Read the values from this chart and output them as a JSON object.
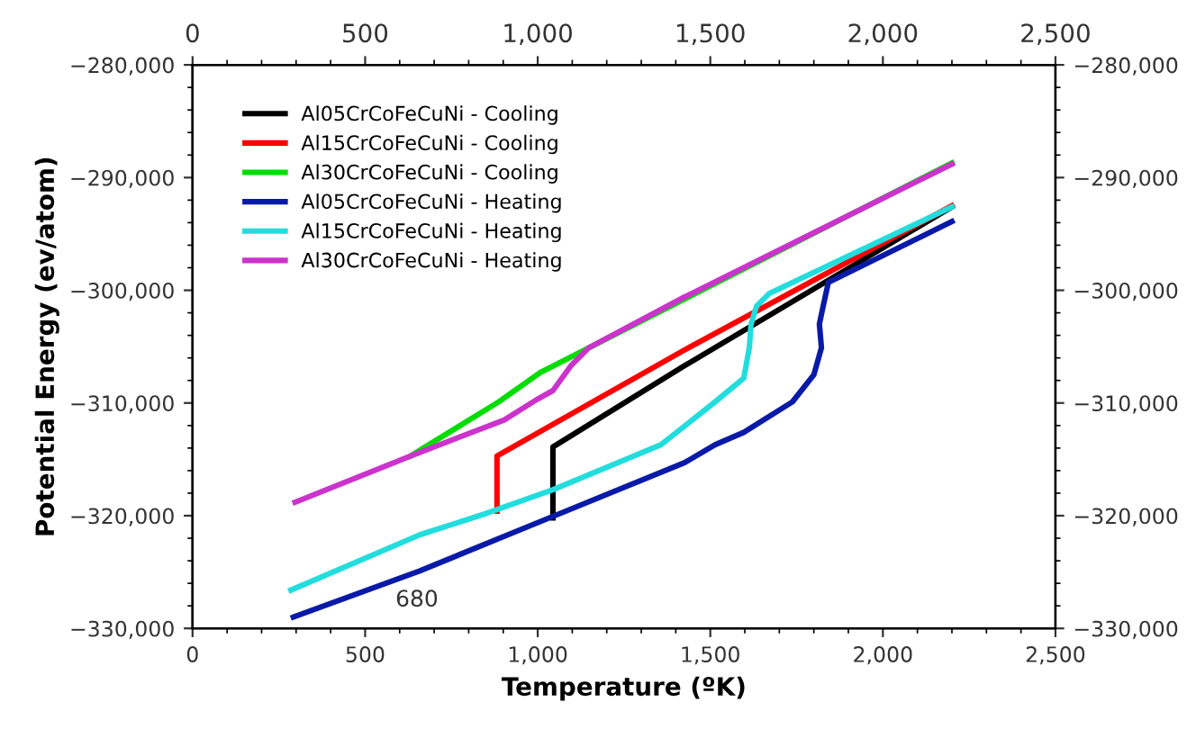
{
  "chart_data": {
    "type": "line",
    "xlabel": "Temperature (ºK)",
    "ylabel": "Potential Energy (ev/atom)",
    "xlim": [
      0,
      2500
    ],
    "ylim": [
      -330000,
      -280000
    ],
    "x2lim": [
      0,
      2500
    ],
    "y2lim": [
      -330000,
      -280000
    ],
    "xticks": [
      0,
      500,
      {
        "value": 1000,
        "label": "1,000"
      },
      {
        "value": 1500,
        "label": "1,500"
      },
      {
        "value": 2000,
        "label": "2,000"
      },
      {
        "value": 2500,
        "label": "2,500"
      }
    ],
    "x2ticks": [
      0,
      500,
      {
        "value": 1000,
        "label": "1,000"
      },
      {
        "value": 1500,
        "label": "1,500"
      },
      {
        "value": 2000,
        "label": "2,000"
      },
      {
        "value": 2500,
        "label": "2,500"
      }
    ],
    "yticks": [
      {
        "value": -330000,
        "label": "−330,000"
      },
      {
        "value": -320000,
        "label": "−320,000"
      },
      {
        "value": -310000,
        "label": "−310,000"
      },
      {
        "value": -300000,
        "label": "−300,000"
      },
      {
        "value": -290000,
        "label": "−290,000"
      },
      {
        "value": -280000,
        "label": "−280,000"
      }
    ],
    "y2ticks": [
      {
        "value": -330000,
        "label": "−330,000"
      },
      {
        "value": -320000,
        "label": "−320,000"
      },
      {
        "value": -310000,
        "label": "−310,000"
      },
      {
        "value": -300000,
        "label": "−300,000"
      },
      {
        "value": -290000,
        "label": "−290,000"
      },
      {
        "value": -280000,
        "label": "−280,000"
      }
    ],
    "grid": false,
    "legend": "top left",
    "marker": "none",
    "line_style": "solid",
    "annotations": [
      "680"
    ],
    "series": [
      {
        "name": "Al05CrCoFeCuNi - Cooling",
        "color": "#000000",
        "x": [
          2200,
          1425,
          1044,
          1044
        ],
        "values": [
          -292600,
          -306700,
          -313900,
          -320200
        ]
      },
      {
        "name": "Al15CrCoFeCuNi - Cooling",
        "color": "#ff0000",
        "x": [
          2200,
          1425,
          882,
          882
        ],
        "values": [
          -292500,
          -305300,
          -314700,
          -319600
        ]
      },
      {
        "name": "Al30CrCoFeCuNi - Cooling",
        "color": "#00dd00",
        "x": [
          2200,
          1148,
          1007,
          887,
          632
        ],
        "values": [
          -288700,
          -305100,
          -307300,
          -309900,
          -314700
        ]
      },
      {
        "name": "Al05CrCoFeCuNi - Heating",
        "color": "#0a1aa8",
        "x": [
          292,
          658,
          1033,
          1425,
          1514,
          1597,
          1738,
          1800,
          1822,
          1816,
          1827,
          1842,
          2200
        ],
        "values": [
          -329000,
          -324900,
          -320200,
          -315300,
          -313700,
          -312600,
          -309900,
          -307500,
          -305100,
          -303000,
          -301400,
          -299300,
          -293900
        ]
      },
      {
        "name": "Al15CrCoFeCuNi - Heating",
        "color": "#22dddd",
        "x": [
          285,
          658,
          851,
          1044,
          1357,
          1514,
          1597,
          1613,
          1618,
          1634,
          1670,
          2200
        ],
        "values": [
          -326600,
          -321700,
          -319800,
          -317700,
          -313700,
          -309900,
          -307800,
          -305100,
          -303000,
          -301400,
          -300300,
          -292600
        ]
      },
      {
        "name": "Al30CrCoFeCuNi - Heating",
        "color": "#cc33cc",
        "x": [
          297,
          632,
          903,
          997,
          1044,
          1096,
          1148,
          1425,
          2200
        ],
        "values": [
          -318800,
          -314700,
          -311500,
          -309700,
          -308900,
          -306700,
          -305100,
          -300600,
          -288800
        ]
      }
    ]
  }
}
